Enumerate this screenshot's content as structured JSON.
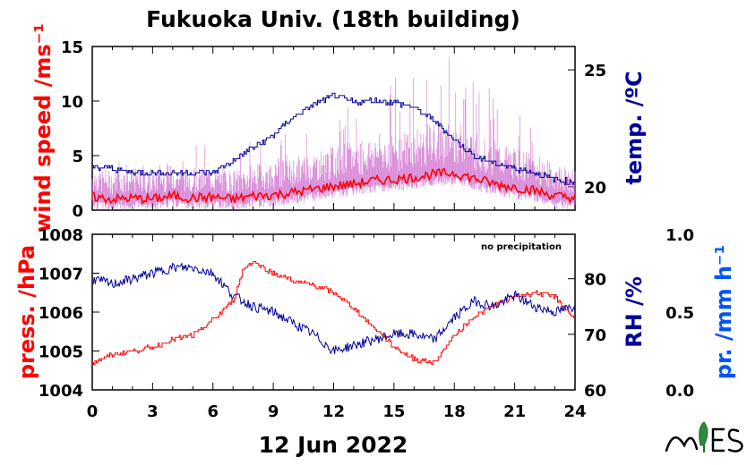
{
  "title": "Fukuoka Univ. (18th building)",
  "date_label": "12 Jun 2022",
  "note": "no precipitation",
  "colors": {
    "wind": "#ff0000",
    "wind_gust": "#cc66cc",
    "temp": "#00009a",
    "press": "#ff0000",
    "rh": "#00009a",
    "precip": "#0055ff",
    "axes": "#000000"
  },
  "chart_data": [
    {
      "type": "line",
      "panel": "top",
      "x_range": [
        0,
        24
      ],
      "x_ticks": [
        "0",
        "3",
        "6",
        "9",
        "12",
        "15",
        "18",
        "21",
        "24"
      ],
      "left_axis": {
        "label": "wind speed /ms⁻¹",
        "range": [
          0,
          15
        ],
        "ticks": [
          "0",
          "5",
          "10",
          "15"
        ]
      },
      "right_axis": {
        "label": "temp. /ºC",
        "range": [
          19,
          26
        ],
        "ticks": [
          "20",
          "25"
        ]
      },
      "series": [
        {
          "axis": "left",
          "x": [
            0,
            1,
            2,
            3,
            4,
            5,
            6,
            7,
            8,
            9,
            10,
            11,
            12,
            13,
            14,
            15,
            16,
            17,
            18,
            19,
            20,
            21,
            22,
            23,
            24
          ],
          "values": [
            1.2,
            1.0,
            1.1,
            1.0,
            1.3,
            1.1,
            1.2,
            1.0,
            1.3,
            1.4,
            1.6,
            1.9,
            2.2,
            2.4,
            2.7,
            2.8,
            3.0,
            3.3,
            3.4,
            2.9,
            2.4,
            2.1,
            1.8,
            1.3,
            1.1
          ]
        },
        {
          "axis": "right",
          "x": [
            0,
            1,
            2,
            3,
            4,
            5,
            6,
            7,
            8,
            9,
            10,
            11,
            12,
            13,
            14,
            15,
            16,
            17,
            18,
            19,
            20,
            21,
            22,
            23,
            24
          ],
          "values": [
            20.8,
            20.8,
            20.6,
            20.6,
            20.6,
            20.6,
            20.6,
            21.1,
            21.7,
            22.2,
            23.0,
            23.5,
            23.9,
            23.6,
            23.7,
            23.6,
            23.4,
            22.8,
            22.0,
            21.3,
            21.0,
            20.8,
            20.6,
            20.3,
            20.2
          ]
        }
      ]
    },
    {
      "type": "line",
      "panel": "bottom",
      "x_range": [
        0,
        24
      ],
      "x_ticks": [
        "0",
        "3",
        "6",
        "9",
        "12",
        "15",
        "18",
        "21",
        "24"
      ],
      "left_axis": {
        "label": "press. /hPa",
        "range": [
          1004,
          1008
        ],
        "ticks": [
          "1004",
          "1005",
          "1006",
          "1007",
          "1008"
        ]
      },
      "right_axis": {
        "label": "RH /%",
        "range": [
          60,
          88
        ],
        "ticks": [
          "60",
          "70",
          "80"
        ]
      },
      "right2_axis": {
        "label": "pr. /mm h⁻¹",
        "range": [
          0,
          1
        ],
        "ticks": [
          "0.0",
          "0.5",
          "1.0"
        ]
      },
      "series": [
        {
          "axis": "left",
          "x": [
            0,
            1,
            2,
            3,
            4,
            5,
            6,
            7,
            7.5,
            8,
            9,
            10,
            11,
            12,
            13,
            14,
            15,
            16,
            17,
            18,
            19,
            20,
            21,
            22,
            23,
            23.5,
            24
          ],
          "values": [
            1004.7,
            1004.9,
            1005.0,
            1005.1,
            1005.3,
            1005.4,
            1005.8,
            1006.3,
            1007.1,
            1007.3,
            1007.0,
            1006.8,
            1006.7,
            1006.5,
            1006.1,
            1005.6,
            1005.1,
            1004.8,
            1004.7,
            1005.4,
            1005.9,
            1006.2,
            1006.4,
            1006.5,
            1006.4,
            1006.1,
            1005.8
          ]
        },
        {
          "axis": "right",
          "x": [
            0,
            1,
            2,
            3,
            4,
            5,
            6,
            7,
            8,
            9,
            10,
            11,
            12,
            13,
            14,
            15,
            16,
            17,
            18,
            19,
            20,
            21,
            22,
            23,
            24
          ],
          "values": [
            80,
            79,
            80,
            81,
            82,
            82,
            81,
            77,
            75,
            74,
            72,
            70,
            67,
            68,
            69,
            70,
            70,
            69,
            73,
            76,
            75,
            77,
            75,
            74,
            75
          ]
        }
      ]
    }
  ]
}
